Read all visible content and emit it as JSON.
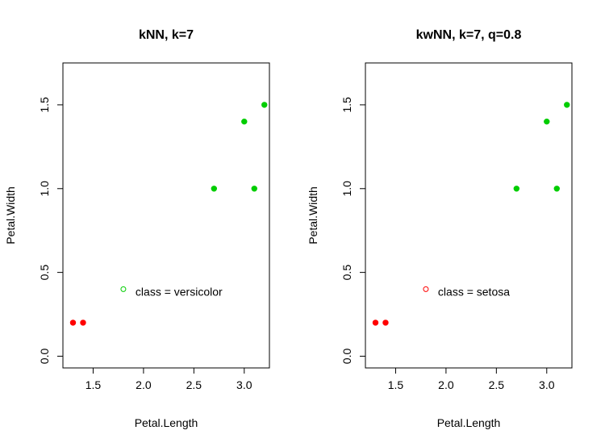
{
  "chart_data": [
    {
      "type": "scatter",
      "title": "kNN, k=7",
      "xlabel": "Petal.Length",
      "ylabel": "Petal.Width",
      "xlim": [
        1.2,
        3.25
      ],
      "ylim": [
        -0.07,
        1.75
      ],
      "xticks": [
        "1.5",
        "2.0",
        "2.5",
        "3.0"
      ],
      "yticks": [
        "0.0",
        "0.5",
        "1.0",
        "1.5"
      ],
      "series": [
        {
          "color": "#ff0000",
          "marker": "filled",
          "points": [
            [
              1.3,
              0.2
            ],
            [
              1.4,
              0.2
            ]
          ]
        },
        {
          "color": "#00cd00",
          "marker": "filled",
          "points": [
            [
              2.7,
              1.0
            ],
            [
              3.0,
              1.4
            ],
            [
              3.1,
              1.0
            ],
            [
              3.2,
              1.5
            ]
          ]
        }
      ],
      "query_point": {
        "x": 1.8,
        "y": 0.4,
        "color": "#00cd00",
        "marker": "open"
      },
      "annotation": "class = versicolor",
      "grid": false
    },
    {
      "type": "scatter",
      "title": "kwNN, k=7, q=0.8",
      "xlabel": "Petal.Length",
      "ylabel": "Petal.Width",
      "xlim": [
        1.2,
        3.25
      ],
      "ylim": [
        -0.07,
        1.75
      ],
      "xticks": [
        "1.5",
        "2.0",
        "2.5",
        "3.0"
      ],
      "yticks": [
        "0.0",
        "0.5",
        "1.0",
        "1.5"
      ],
      "series": [
        {
          "color": "#ff0000",
          "marker": "filled",
          "points": [
            [
              1.3,
              0.2
            ],
            [
              1.4,
              0.2
            ]
          ]
        },
        {
          "color": "#00cd00",
          "marker": "filled",
          "points": [
            [
              2.7,
              1.0
            ],
            [
              3.0,
              1.4
            ],
            [
              3.1,
              1.0
            ],
            [
              3.2,
              1.5
            ]
          ]
        }
      ],
      "query_point": {
        "x": 1.8,
        "y": 0.4,
        "color": "#ff0000",
        "marker": "open"
      },
      "annotation": "class = setosa",
      "grid": false
    }
  ]
}
